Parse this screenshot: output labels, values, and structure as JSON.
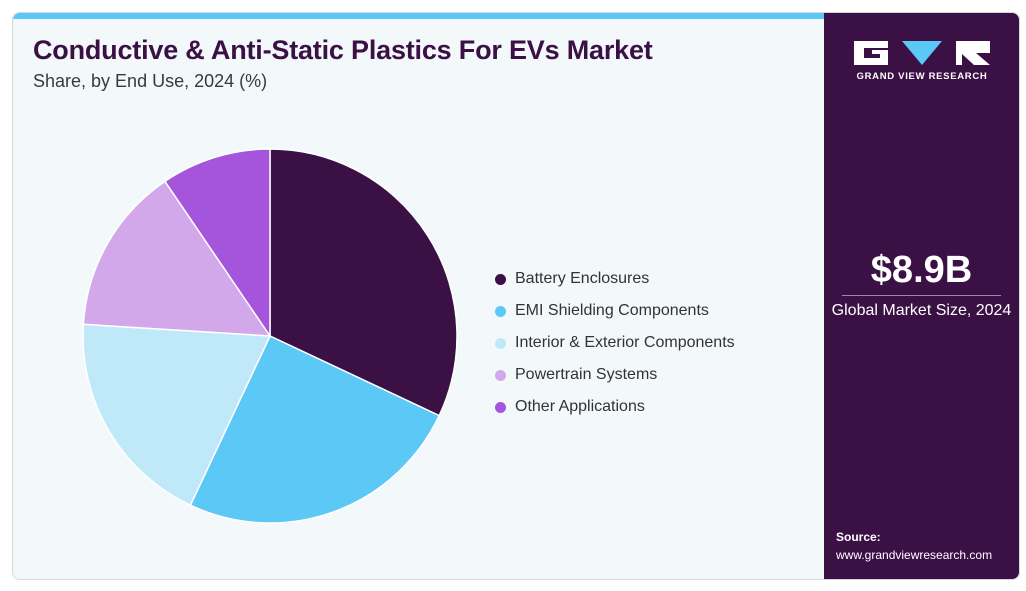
{
  "header": {
    "title": "Conductive & Anti-Static Plastics For EVs Market",
    "subtitle": "Share, by End Use, 2024 (%)"
  },
  "chart_data": {
    "type": "pie",
    "title": "Conductive & Anti-Static Plastics For EVs Market",
    "subtitle": "Share, by End Use, 2024 (%)",
    "legend_position": "right",
    "slices": [
      {
        "name": "Battery Enclosures",
        "value": 32,
        "color": "#3a1045"
      },
      {
        "name": "EMI Shielding Components",
        "value": 25,
        "color": "#5bc8f5"
      },
      {
        "name": "Interior & Exterior Components",
        "value": 19,
        "color": "#bfe8f8"
      },
      {
        "name": "Powertrain Systems",
        "value": 14.5,
        "color": "#d3a8ea"
      },
      {
        "name": "Other Applications",
        "value": 9.5,
        "color": "#a555db"
      }
    ]
  },
  "sidebar": {
    "brand": "GRAND VIEW RESEARCH",
    "market_size_value": "$8.9B",
    "market_size_label": "Global Market Size, 2024",
    "source_label": "Source:",
    "source_url": "www.grandviewresearch.com"
  },
  "colors": {
    "brand_purple": "#3a1045",
    "accent_blue": "#5bc8f5",
    "panel_background": "#f3f8fb"
  }
}
